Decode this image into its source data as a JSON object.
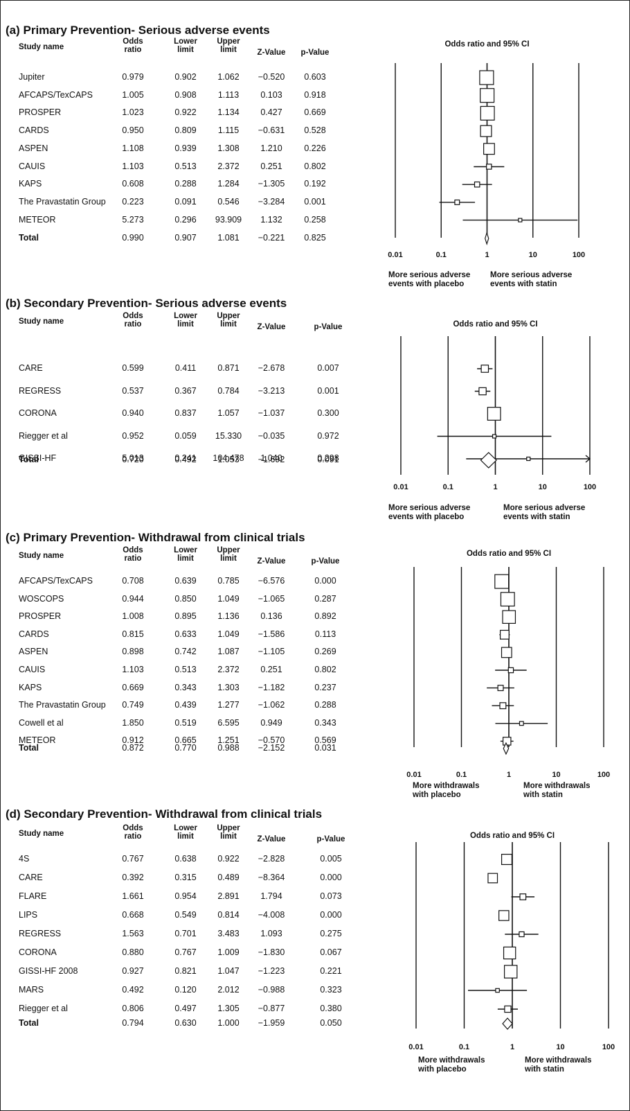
{
  "columns": {
    "study": "Study name",
    "odds": [
      "Odds",
      "ratio"
    ],
    "lower": [
      "Lower",
      "limit"
    ],
    "upper": [
      "Upper",
      "limit"
    ],
    "z": "Z-Value",
    "p": "p-Value"
  },
  "chart_data": [
    {
      "type": "forest",
      "title": "(a)  Primary Prevention- Serious adverse events",
      "plot_title": "Odds ratio and 95% CI",
      "xscale": "log",
      "xlim": [
        0.01,
        100
      ],
      "ticks": [
        "0.01",
        "0.1",
        "1",
        "10",
        "100"
      ],
      "footer_left": [
        "More serious adverse",
        "events with placebo"
      ],
      "footer_right": [
        "More serious adverse",
        "events with statin"
      ],
      "rows": [
        {
          "name": "Jupiter",
          "or": "0.979",
          "lower": "0.902",
          "upper": "1.062",
          "z": "−0.520",
          "p": "0.603"
        },
        {
          "name": "AFCAPS/TexCAPS",
          "or": "1.005",
          "lower": "0.908",
          "upper": "1.113",
          "z": "0.103",
          "p": "0.918"
        },
        {
          "name": "PROSPER",
          "or": "1.023",
          "lower": "0.922",
          "upper": "1.134",
          "z": "0.427",
          "p": "0.669"
        },
        {
          "name": "CARDS",
          "or": "0.950",
          "lower": "0.809",
          "upper": "1.115",
          "z": "−0.631",
          "p": "0.528"
        },
        {
          "name": "ASPEN",
          "or": "1.108",
          "lower": "0.939",
          "upper": "1.308",
          "z": "1.210",
          "p": "0.226"
        },
        {
          "name": "CAUIS",
          "or": "1.103",
          "lower": "0.513",
          "upper": "2.372",
          "z": "0.251",
          "p": "0.802"
        },
        {
          "name": "KAPS",
          "or": "0.608",
          "lower": "0.288",
          "upper": "1.284",
          "z": "−1.305",
          "p": "0.192"
        },
        {
          "name": "The Pravastatin Group",
          "or": "0.223",
          "lower": "0.091",
          "upper": "0.546",
          "z": "−3.284",
          "p": "0.001"
        },
        {
          "name": "METEOR",
          "or": "5.273",
          "lower": "0.296",
          "upper": "93.909",
          "z": "1.132",
          "p": "0.258"
        }
      ],
      "total": {
        "name": "Total",
        "or": "0.990",
        "lower": "0.907",
        "upper": "1.081",
        "z": "−0.221",
        "p": "0.825"
      }
    },
    {
      "type": "forest",
      "title": "(b)  Secondary Prevention- Serious adverse events",
      "plot_title": "Odds ratio and 95% CI",
      "xscale": "log",
      "xlim": [
        0.01,
        100
      ],
      "ticks": [
        "0.01",
        "0.1",
        "1",
        "10",
        "100"
      ],
      "footer_left": [
        "More serious adverse",
        "events with placebo"
      ],
      "footer_right": [
        "More serious adverse",
        "events with statin"
      ],
      "rows": [
        {
          "name": "CARE",
          "or": "0.599",
          "lower": "0.411",
          "upper": "0.871",
          "z": "−2.678",
          "p": "0.007"
        },
        {
          "name": "REGRESS",
          "or": "0.537",
          "lower": "0.367",
          "upper": "0.784",
          "z": "−3.213",
          "p": "0.001"
        },
        {
          "name": "CORONA",
          "or": "0.940",
          "lower": "0.837",
          "upper": "1.057",
          "z": "−1.037",
          "p": "0.300"
        },
        {
          "name": "Riegger et al",
          "or": "0.952",
          "lower": "0.059",
          "upper": "15.330",
          "z": "−0.035",
          "p": "0.972"
        },
        {
          "name": "GISSI-HF",
          "or": "5.013",
          "lower": "0.241",
          "upper": "104.478",
          "z": "1.040",
          "p": "0.298"
        }
      ],
      "total": {
        "name": "Total",
        "or": "0.720",
        "lower": "0.492",
        "upper": "1.053",
        "z": "−1.692",
        "p": "0.091"
      }
    },
    {
      "type": "forest",
      "title": "(c)  Primary Prevention- Withdrawal from clinical trials",
      "plot_title": "Odds ratio and 95% CI",
      "xscale": "log",
      "xlim": [
        0.01,
        100
      ],
      "ticks": [
        "0.01",
        "0.1",
        "1",
        "10",
        "100"
      ],
      "footer_left": [
        "More withdrawals",
        "with placebo"
      ],
      "footer_right": [
        "More withdrawals",
        "with statin"
      ],
      "rows": [
        {
          "name": "AFCAPS/TexCAPS",
          "or": "0.708",
          "lower": "0.639",
          "upper": "0.785",
          "z": "−6.576",
          "p": "0.000"
        },
        {
          "name": "WOSCOPS",
          "or": "0.944",
          "lower": "0.850",
          "upper": "1.049",
          "z": "−1.065",
          "p": "0.287"
        },
        {
          "name": "PROSPER",
          "or": "1.008",
          "lower": "0.895",
          "upper": "1.136",
          "z": "0.136",
          "p": "0.892"
        },
        {
          "name": "CARDS",
          "or": "0.815",
          "lower": "0.633",
          "upper": "1.049",
          "z": "−1.586",
          "p": "0.113"
        },
        {
          "name": "ASPEN",
          "or": "0.898",
          "lower": "0.742",
          "upper": "1.087",
          "z": "−1.105",
          "p": "0.269"
        },
        {
          "name": "CAUIS",
          "or": "1.103",
          "lower": "0.513",
          "upper": "2.372",
          "z": "0.251",
          "p": "0.802"
        },
        {
          "name": "KAPS",
          "or": "0.669",
          "lower": "0.343",
          "upper": "1.303",
          "z": "−1.182",
          "p": "0.237"
        },
        {
          "name": "The Pravastatin Group",
          "or": "0.749",
          "lower": "0.439",
          "upper": "1.277",
          "z": "−1.062",
          "p": "0.288"
        },
        {
          "name": "Cowell et al",
          "or": "1.850",
          "lower": "0.519",
          "upper": "6.595",
          "z": "0.949",
          "p": "0.343"
        },
        {
          "name": "METEOR",
          "or": "0.912",
          "lower": "0.665",
          "upper": "1.251",
          "z": "−0.570",
          "p": "0.569"
        }
      ],
      "total": {
        "name": "Total",
        "or": "0.872",
        "lower": "0.770",
        "upper": "0.988",
        "z": "−2.152",
        "p": "0.031"
      }
    },
    {
      "type": "forest",
      "title": "(d)  Secondary Prevention- Withdrawal from clinical trials",
      "plot_title": "Odds ratio and 95% CI",
      "xscale": "log",
      "xlim": [
        0.01,
        100
      ],
      "ticks": [
        "0.01",
        "0.1",
        "1",
        "10",
        "100"
      ],
      "footer_left": [
        "More withdrawals",
        "with placebo"
      ],
      "footer_right": [
        "More withdrawals",
        "with statin"
      ],
      "rows": [
        {
          "name": "4S",
          "or": "0.767",
          "lower": "0.638",
          "upper": "0.922",
          "z": "−2.828",
          "p": "0.005"
        },
        {
          "name": "CARE",
          "or": "0.392",
          "lower": "0.315",
          "upper": "0.489",
          "z": "−8.364",
          "p": "0.000"
        },
        {
          "name": "FLARE",
          "or": "1.661",
          "lower": "0.954",
          "upper": "2.891",
          "z": "1.794",
          "p": "0.073"
        },
        {
          "name": "LIPS",
          "or": "0.668",
          "lower": "0.549",
          "upper": "0.814",
          "z": "−4.008",
          "p": "0.000"
        },
        {
          "name": "REGRESS",
          "or": "1.563",
          "lower": "0.701",
          "upper": "3.483",
          "z": "1.093",
          "p": "0.275"
        },
        {
          "name": "CORONA",
          "or": "0.880",
          "lower": "0.767",
          "upper": "1.009",
          "z": "−1.830",
          "p": "0.067"
        },
        {
          "name": "GISSI-HF 2008",
          "or": "0.927",
          "lower": "0.821",
          "upper": "1.047",
          "z": "−1.223",
          "p": "0.221"
        },
        {
          "name": "MARS",
          "or": "0.492",
          "lower": "0.120",
          "upper": "2.012",
          "z": "−0.988",
          "p": "0.323"
        },
        {
          "name": "Riegger et al",
          "or": "0.806",
          "lower": "0.497",
          "upper": "1.305",
          "z": "−0.877",
          "p": "0.380"
        }
      ],
      "total": {
        "name": "Total",
        "or": "0.794",
        "lower": "0.630",
        "upper": "1.000",
        "z": "−1.959",
        "p": "0.050"
      }
    }
  ]
}
